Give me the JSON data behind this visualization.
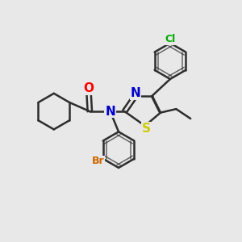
{
  "bg_color": "#e8e8e8",
  "bond_color": "#2d2d2d",
  "bond_width": 1.8,
  "atoms": {
    "N": {
      "color": "#0000cc",
      "fontsize": 11,
      "fontweight": "bold"
    },
    "O": {
      "color": "#ff0000",
      "fontsize": 11,
      "fontweight": "bold"
    },
    "S": {
      "color": "#cccc00",
      "fontsize": 11,
      "fontweight": "bold"
    },
    "Br": {
      "color": "#cc6600",
      "fontsize": 9,
      "fontweight": "bold"
    },
    "Cl": {
      "color": "#00aa00",
      "fontsize": 9,
      "fontweight": "bold"
    },
    "C": {
      "color": "#2d2d2d",
      "fontsize": 8,
      "fontweight": "normal"
    }
  }
}
